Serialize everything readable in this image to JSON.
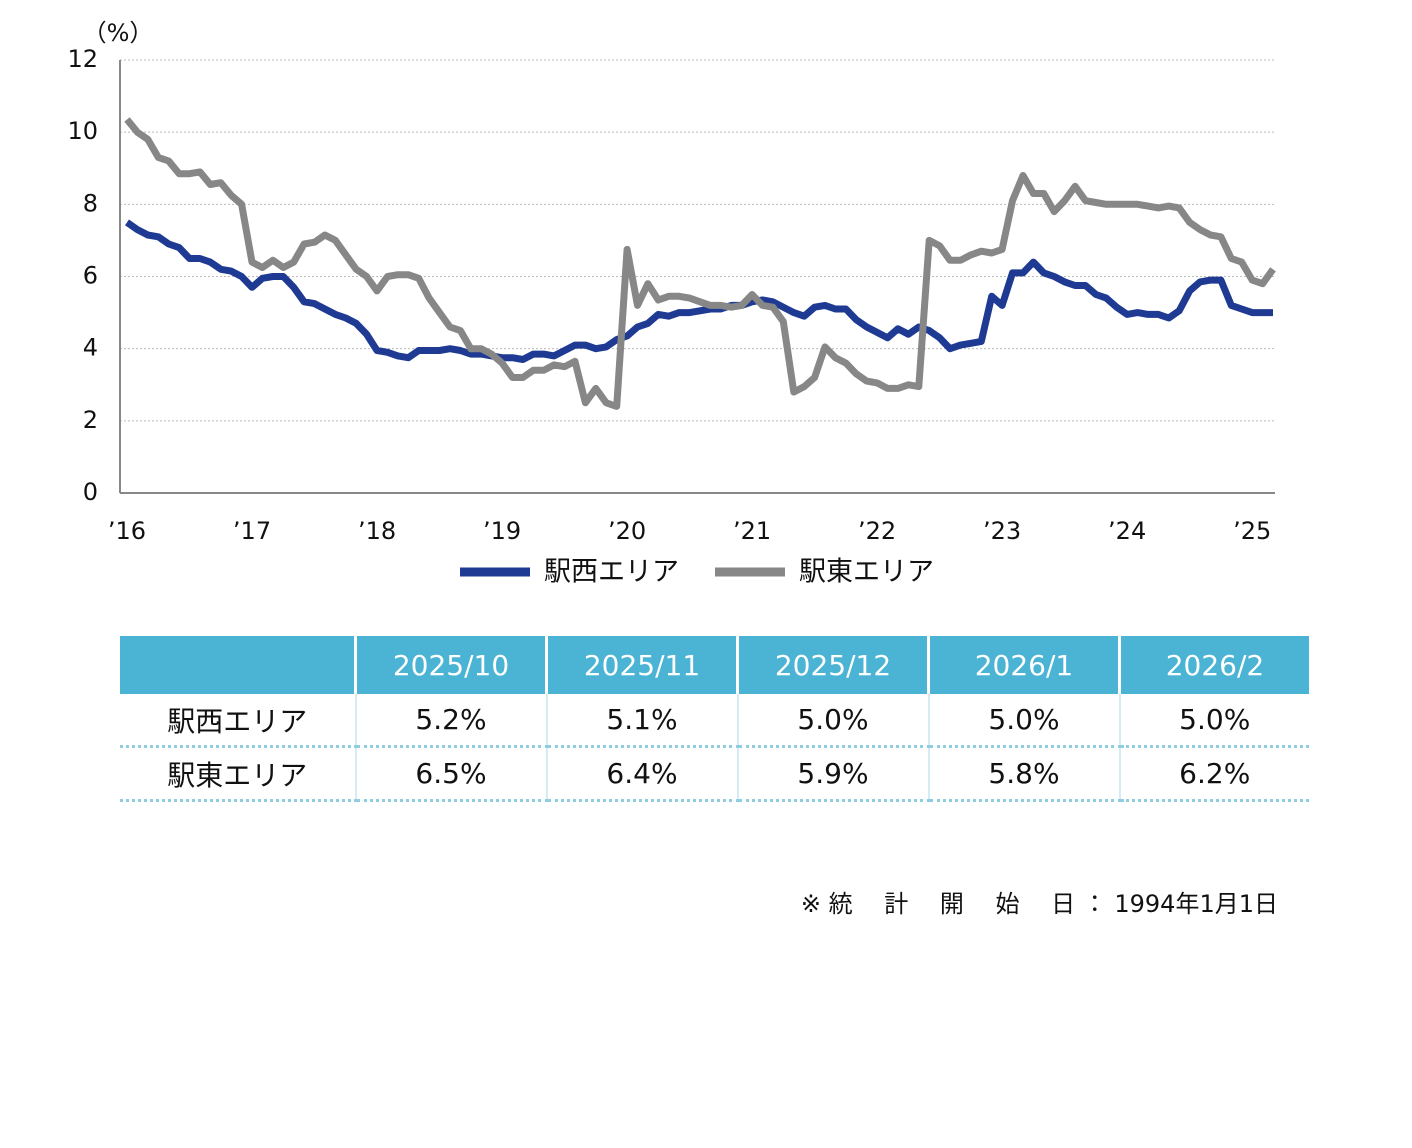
{
  "chart_data": {
    "type": "line",
    "y_unit_label": "（%）",
    "categories": [
      "’16",
      null,
      null,
      null,
      null,
      null,
      null,
      null,
      null,
      null,
      null,
      null,
      "’17",
      null,
      null,
      null,
      null,
      null,
      null,
      null,
      null,
      null,
      null,
      null,
      "’18",
      null,
      null,
      null,
      null,
      null,
      null,
      null,
      null,
      null,
      null,
      null,
      "’19",
      null,
      null,
      null,
      null,
      null,
      null,
      null,
      null,
      null,
      null,
      null,
      "’20",
      null,
      null,
      null,
      null,
      null,
      null,
      null,
      null,
      null,
      null,
      null,
      "’21",
      null,
      null,
      null,
      null,
      null,
      null,
      null,
      null,
      null,
      null,
      null,
      "’22",
      null,
      null,
      null,
      null,
      null,
      null,
      null,
      null,
      null,
      null,
      null,
      "’23",
      null,
      null,
      null,
      null,
      null,
      null,
      null,
      null,
      null,
      null,
      null,
      "’24",
      null,
      null,
      null,
      null,
      null,
      null,
      null,
      null,
      null,
      null,
      null,
      "’25",
      null,
      null
    ],
    "series": [
      {
        "name": "駅西エリア",
        "color": "#1f3a93",
        "values": [
          7.5,
          7.3,
          7.15,
          7.1,
          6.9,
          6.8,
          6.5,
          6.5,
          6.4,
          6.2,
          6.15,
          6.0,
          5.7,
          5.95,
          6.0,
          6.0,
          5.7,
          5.3,
          5.25,
          5.1,
          4.95,
          4.85,
          4.7,
          4.4,
          3.95,
          3.9,
          3.8,
          3.75,
          3.95,
          3.95,
          3.95,
          4.0,
          3.95,
          3.85,
          3.85,
          3.8,
          3.75,
          3.75,
          3.7,
          3.85,
          3.85,
          3.8,
          3.95,
          4.1,
          4.1,
          4.0,
          4.05,
          4.25,
          4.35,
          4.6,
          4.7,
          4.95,
          4.9,
          5.0,
          5.0,
          5.05,
          5.1,
          5.1,
          5.2,
          5.2,
          5.3,
          5.35,
          5.3,
          5.15,
          5.0,
          4.9,
          5.15,
          5.2,
          5.1,
          5.1,
          4.8,
          4.6,
          4.45,
          4.3,
          4.55,
          4.4,
          4.6,
          4.5,
          4.3,
          4.0,
          4.1,
          4.15,
          4.2,
          5.45,
          5.2,
          6.1,
          6.1,
          6.4,
          6.1,
          6.0,
          5.85,
          5.75,
          5.75,
          5.5,
          5.4,
          5.15,
          4.95,
          5.0,
          4.95,
          4.95,
          4.85,
          5.05,
          5.6,
          5.85,
          5.9,
          5.9,
          5.2,
          5.1,
          5.0,
          5.0,
          5.0
        ]
      },
      {
        "name": "駅東エリア",
        "color": "#878787",
        "values": [
          10.35,
          10.0,
          9.8,
          9.3,
          9.2,
          8.85,
          8.85,
          8.9,
          8.55,
          8.6,
          8.25,
          8.0,
          6.4,
          6.25,
          6.45,
          6.25,
          6.4,
          6.9,
          6.95,
          7.15,
          7.0,
          6.6,
          6.2,
          6.0,
          5.6,
          6.0,
          6.05,
          6.05,
          5.95,
          5.4,
          5.0,
          4.6,
          4.5,
          4.0,
          4.0,
          3.85,
          3.6,
          3.2,
          3.2,
          3.4,
          3.4,
          3.55,
          3.5,
          3.65,
          2.5,
          2.9,
          2.5,
          2.4,
          6.75,
          5.2,
          5.8,
          5.35,
          5.45,
          5.45,
          5.4,
          5.3,
          5.2,
          5.2,
          5.15,
          5.2,
          5.5,
          5.2,
          5.15,
          4.75,
          2.8,
          2.95,
          3.2,
          4.05,
          3.75,
          3.6,
          3.3,
          3.1,
          3.05,
          2.9,
          2.9,
          3.0,
          2.95,
          7.0,
          6.85,
          6.45,
          6.45,
          6.6,
          6.7,
          6.65,
          6.75,
          8.1,
          8.8,
          8.3,
          8.3,
          7.8,
          8.1,
          8.5,
          8.1,
          8.05,
          8.0,
          8.0,
          8.0,
          8.0,
          7.95,
          7.9,
          7.95,
          7.9,
          7.5,
          7.3,
          7.15,
          7.1,
          6.5,
          6.4,
          5.9,
          5.8,
          6.2
        ]
      }
    ],
    "ylim": [
      0,
      12
    ],
    "yticks": [
      0,
      2,
      4,
      6,
      8,
      10,
      12
    ],
    "grid": true
  },
  "table": {
    "header": [
      "",
      "2025/10",
      "2025/11",
      "2025/12",
      "2026/1",
      "2026/2"
    ],
    "rows": [
      [
        "駅西エリア",
        "5.2%",
        "5.1%",
        "5.0%",
        "5.0%",
        "5.0%"
      ],
      [
        "駅東エリア",
        "6.5%",
        "6.4%",
        "5.9%",
        "5.8%",
        "6.2%"
      ]
    ]
  },
  "footnote": "※ 統　 計　 開　 始　 日 ： 1994年1月1日"
}
